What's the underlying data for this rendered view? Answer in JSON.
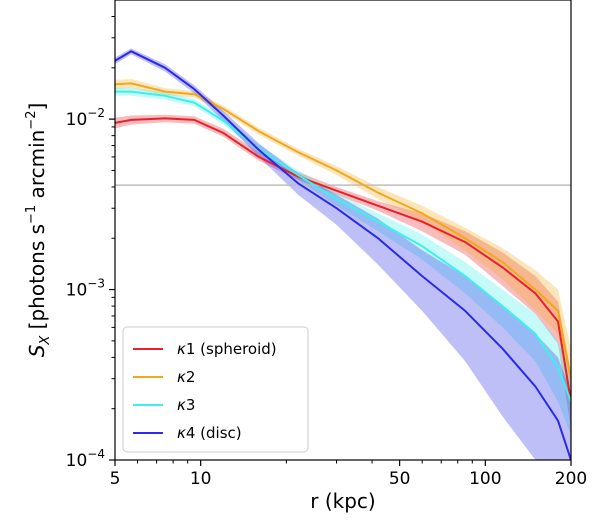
{
  "chart_data": {
    "type": "line",
    "xscale": "log",
    "yscale": "log",
    "xlim": [
      5,
      200
    ],
    "ylim": [
      0.0001,
      0.05
    ],
    "xlabel": "r (kpc)",
    "ylabel": {
      "prefix": "S",
      "sub": "X",
      "text": " [photons s",
      "sup1": "−1",
      "text2": " arcmin",
      "sup2": "−2",
      "close": "]"
    },
    "xticks": [
      {
        "value": 5,
        "label": "5"
      },
      {
        "value": 10,
        "label": "10"
      },
      {
        "value": 50,
        "label": "50"
      },
      {
        "value": 100,
        "label": "100"
      },
      {
        "value": 200,
        "label": "200"
      }
    ],
    "yticks": [
      {
        "value": 0.0001,
        "base": "10",
        "exp": "−4"
      },
      {
        "value": 0.001,
        "base": "10",
        "exp": "−3"
      },
      {
        "value": 0.01,
        "base": "10",
        "exp": "−2"
      }
    ],
    "hline": {
      "value": 0.0041,
      "color": "#bdbdbd"
    },
    "legend_position": "lower-left",
    "x": [
      5,
      5.7,
      7.5,
      9.5,
      12,
      16,
      22,
      30,
      42,
      60,
      85,
      115,
      150,
      180,
      200
    ],
    "series": [
      {
        "name": "κ1 (spheroid)",
        "label_sym": "κ",
        "label_rest": "1 (spheroid)",
        "color": "#e8202a",
        "y": [
          0.0095,
          0.0099,
          0.0101,
          0.0099,
          0.0083,
          0.006,
          0.0046,
          0.0038,
          0.0031,
          0.0025,
          0.0019,
          0.00135,
          0.00095,
          0.00065,
          0.00022
        ],
        "lower": [
          0.0088,
          0.0093,
          0.0096,
          0.0094,
          0.0079,
          0.0057,
          0.0044,
          0.0036,
          0.0029,
          0.0022,
          0.0016,
          0.00105,
          0.00072,
          0.00048,
          0.00015
        ],
        "upper": [
          0.0102,
          0.0105,
          0.0106,
          0.0104,
          0.0088,
          0.0064,
          0.0049,
          0.004,
          0.0033,
          0.0028,
          0.0022,
          0.00165,
          0.0012,
          0.00085,
          0.00032
        ]
      },
      {
        "name": "κ2",
        "label_sym": "κ",
        "label_rest": "2",
        "color": "#f2a81e",
        "y": [
          0.016,
          0.0162,
          0.0145,
          0.014,
          0.0115,
          0.0085,
          0.0064,
          0.005,
          0.0037,
          0.0028,
          0.002,
          0.00145,
          0.001,
          0.00075,
          0.0003
        ],
        "lower": [
          0.015,
          0.0152,
          0.0138,
          0.0134,
          0.011,
          0.0081,
          0.0061,
          0.0047,
          0.0034,
          0.0025,
          0.0017,
          0.00115,
          0.00075,
          0.00055,
          0.0002
        ],
        "upper": [
          0.017,
          0.0172,
          0.0152,
          0.0146,
          0.012,
          0.0089,
          0.0067,
          0.0053,
          0.004,
          0.0031,
          0.0023,
          0.00175,
          0.0013,
          0.001,
          0.00045
        ]
      },
      {
        "name": "κ3",
        "label_sym": "κ",
        "label_rest": "3",
        "color": "#3ef0ec",
        "y": [
          0.0145,
          0.0145,
          0.0137,
          0.0125,
          0.0098,
          0.0067,
          0.0047,
          0.0034,
          0.0025,
          0.0018,
          0.0012,
          0.0008,
          0.00055,
          0.00035,
          0.00022
        ],
        "lower": [
          0.0137,
          0.0137,
          0.013,
          0.0119,
          0.0093,
          0.0063,
          0.0044,
          0.0031,
          0.0022,
          0.0015,
          0.00095,
          0.0006,
          0.00038,
          0.00022,
          0.00014
        ],
        "upper": [
          0.0153,
          0.0153,
          0.0144,
          0.0131,
          0.0103,
          0.0071,
          0.005,
          0.0037,
          0.0028,
          0.0021,
          0.00145,
          0.001,
          0.00072,
          0.0005,
          0.00032
        ]
      },
      {
        "name": "κ4 (disc)",
        "label_sym": "κ",
        "label_rest": "4 (disc)",
        "color": "#2a2ae8",
        "y": [
          0.022,
          0.025,
          0.02,
          0.015,
          0.0105,
          0.0066,
          0.0042,
          0.003,
          0.002,
          0.0012,
          0.00075,
          0.00045,
          0.00027,
          0.00017,
          0.0001
        ],
        "lower": [
          0.021,
          0.024,
          0.019,
          0.0142,
          0.0098,
          0.006,
          0.0036,
          0.0024,
          0.0014,
          0.00075,
          0.00038,
          0.00018,
          0.0001,
          0.0001,
          0.0001
        ],
        "upper": [
          0.023,
          0.026,
          0.021,
          0.0158,
          0.0112,
          0.0072,
          0.0048,
          0.0036,
          0.0026,
          0.0017,
          0.0012,
          0.0008,
          0.00055,
          0.0004,
          0.00025
        ]
      }
    ]
  }
}
